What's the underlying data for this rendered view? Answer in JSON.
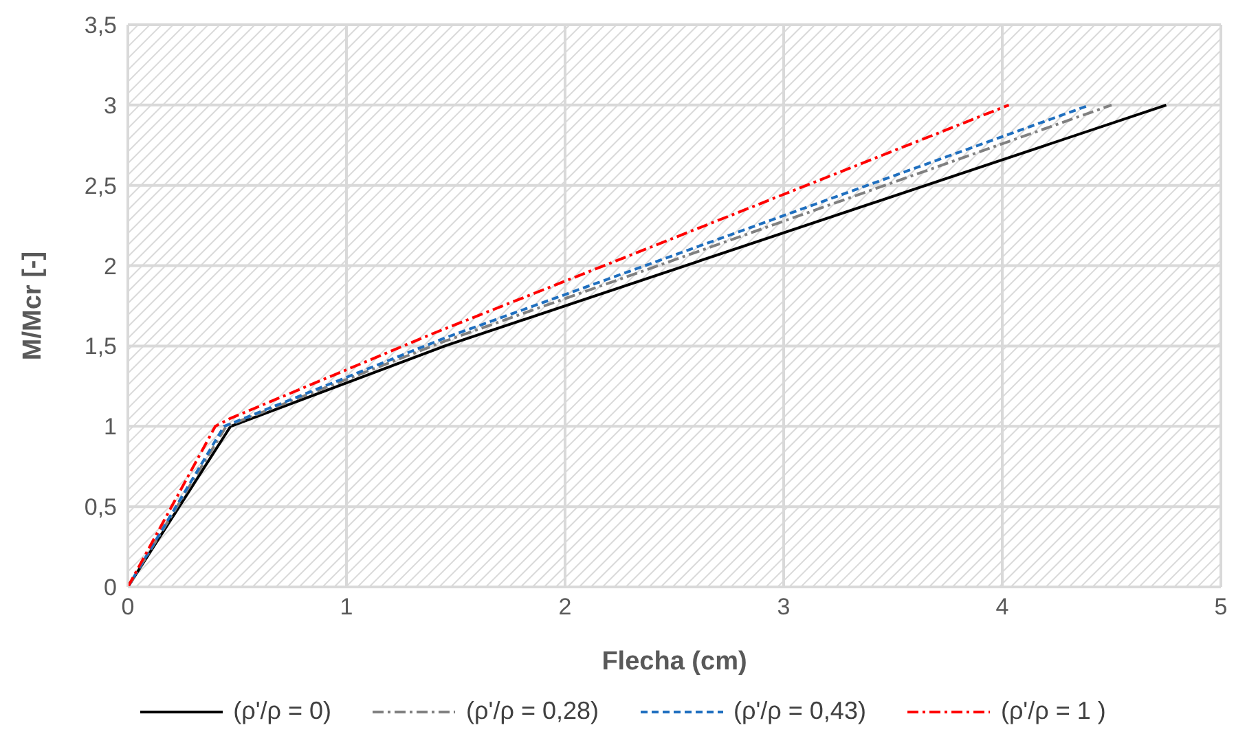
{
  "chart_data": {
    "type": "line",
    "xlabel": "Flecha (cm)",
    "ylabel": "M/Mcr [-]",
    "xlim": [
      0,
      5
    ],
    "xticks": [
      0,
      1,
      2,
      3,
      4,
      5
    ],
    "ylim": [
      0,
      3.5
    ],
    "yticks": [
      0,
      {
        "value": 0.5,
        "label": "0,5"
      },
      1,
      {
        "value": 1.5,
        "label": "1,5"
      },
      2,
      {
        "value": 2.5,
        "label": "2,5"
      },
      3,
      {
        "value": 3.5,
        "label": "3,5"
      }
    ],
    "grid": true,
    "legend": "bottom",
    "marker": "none",
    "series": [
      {
        "name": "(ρ'/ρ = 0)",
        "color": "#000000",
        "line_style": "solid",
        "x": [
          0,
          0.47,
          1.45,
          4.75
        ],
        "values": [
          0,
          1,
          1.5,
          3
        ]
      },
      {
        "name": "(ρ'/ρ = 0,28)",
        "color": "#808080",
        "line_style": "dashdot",
        "x": [
          0,
          0.45,
          1.45,
          4.5
        ],
        "values": [
          0,
          1,
          1.53,
          3
        ]
      },
      {
        "name": "(ρ'/ρ = 0,43)",
        "color": "#1f6fbf",
        "line_style": "dashed",
        "x": [
          0,
          0.44,
          1.45,
          4.4
        ],
        "values": [
          0,
          1,
          1.55,
          3
        ]
      },
      {
        "name": "(ρ'/ρ = 1 )",
        "color": "#ff0000",
        "line_style": "dashdot",
        "x": [
          0,
          0.4,
          0.47,
          1.4,
          4.03
        ],
        "values": [
          0,
          1,
          1.05,
          1.58,
          3
        ]
      }
    ]
  }
}
